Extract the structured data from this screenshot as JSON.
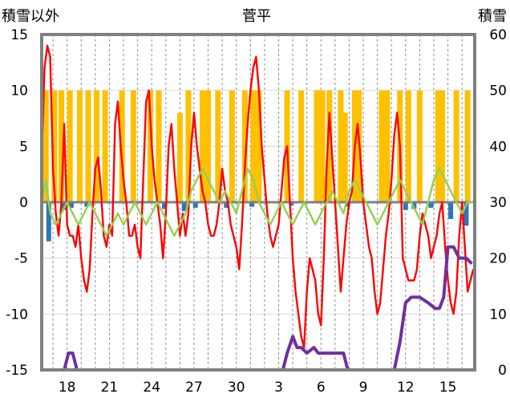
{
  "chart_data": {
    "type": "bar+line",
    "title": "菅平",
    "left_axis_label": "積雪以外",
    "right_axis_label": "積雪",
    "left_ylim": [
      -15,
      15
    ],
    "left_ticks": [
      -15,
      -10,
      -5,
      0,
      5,
      10,
      15
    ],
    "right_ylim": [
      0,
      60
    ],
    "right_ticks": [
      0,
      10,
      20,
      30,
      40,
      50,
      60
    ],
    "x_tick_labels": [
      "18",
      "21",
      "24",
      "27",
      "30",
      "3",
      "6",
      "9",
      "12",
      "15"
    ],
    "x_tick_days": [
      2,
      5,
      8,
      11,
      14,
      17,
      20,
      23,
      26,
      29
    ],
    "x_range_days": [
      0.2,
      30.9
    ],
    "grid_vertical_dashed": true,
    "colors": {
      "yellow_bars": "#FFC000",
      "blue_bars": "#2E75B6",
      "red_line": "#FF0000",
      "green_line": "#92D050",
      "purple_line": "#7030A0",
      "frame": "#808080"
    },
    "series": [
      {
        "kind": "bar",
        "axis": "left",
        "color": "#FFC000",
        "points": [
          [
            0.5,
            10
          ],
          [
            1.1,
            10
          ],
          [
            1.6,
            10
          ],
          [
            2.2,
            10
          ],
          [
            2.9,
            10
          ],
          [
            3.5,
            10
          ],
          [
            4.1,
            10
          ],
          [
            4.7,
            10
          ],
          [
            5.9,
            10
          ],
          [
            6.7,
            10
          ],
          [
            7.9,
            10
          ],
          [
            8.5,
            10
          ],
          [
            10.0,
            8
          ],
          [
            10.6,
            10
          ],
          [
            11.6,
            10
          ],
          [
            12.0,
            10
          ],
          [
            12.7,
            10
          ],
          [
            13.7,
            10
          ],
          [
            14.6,
            10
          ],
          [
            15.2,
            10
          ],
          [
            15.6,
            10
          ],
          [
            17.6,
            10
          ],
          [
            18.6,
            10
          ],
          [
            19.7,
            10
          ],
          [
            20.1,
            10
          ],
          [
            20.6,
            10
          ],
          [
            21.4,
            10
          ],
          [
            21.7,
            8
          ],
          [
            22.4,
            10
          ],
          [
            22.7,
            10
          ],
          [
            24.3,
            10
          ],
          [
            24.7,
            10
          ],
          [
            25.6,
            10
          ],
          [
            26.2,
            10
          ],
          [
            27.0,
            10
          ],
          [
            28.3,
            10
          ],
          [
            28.6,
            10
          ],
          [
            29.6,
            10
          ],
          [
            30.4,
            10
          ]
        ]
      },
      {
        "kind": "bar",
        "axis": "left",
        "color": "#2E75B6",
        "points": [
          [
            0.7,
            -3.5
          ],
          [
            1.8,
            -0.7
          ],
          [
            2.3,
            -0.5
          ],
          [
            3.4,
            -0.4
          ],
          [
            8.9,
            -0.6
          ],
          [
            10.3,
            -0.8
          ],
          [
            11.1,
            -0.5
          ],
          [
            13.3,
            -0.5
          ],
          [
            15.1,
            -0.4
          ],
          [
            17.9,
            -0.3
          ],
          [
            21.9,
            -0.4
          ],
          [
            26.0,
            -0.7
          ],
          [
            26.6,
            -0.6
          ],
          [
            27.8,
            -0.5
          ],
          [
            29.2,
            -1.5
          ],
          [
            30.3,
            -2.1
          ]
        ]
      },
      {
        "kind": "line",
        "axis": "left",
        "color": "#FF0000",
        "name": "",
        "points": [
          [
            0.2,
            4
          ],
          [
            0.4,
            12
          ],
          [
            0.6,
            14
          ],
          [
            0.8,
            13
          ],
          [
            1.0,
            3
          ],
          [
            1.2,
            -1
          ],
          [
            1.4,
            -3
          ],
          [
            1.6,
            0
          ],
          [
            1.8,
            7
          ],
          [
            2.0,
            -2
          ],
          [
            2.2,
            -3
          ],
          [
            2.4,
            -3
          ],
          [
            2.6,
            -4
          ],
          [
            2.8,
            -2
          ],
          [
            3.0,
            -5
          ],
          [
            3.2,
            -7
          ],
          [
            3.4,
            -8
          ],
          [
            3.6,
            -6
          ],
          [
            3.8,
            -1
          ],
          [
            4.0,
            3
          ],
          [
            4.2,
            4
          ],
          [
            4.4,
            1
          ],
          [
            4.6,
            -3
          ],
          [
            4.8,
            -4
          ],
          [
            5.0,
            -2
          ],
          [
            5.2,
            -3
          ],
          [
            5.4,
            7
          ],
          [
            5.6,
            9
          ],
          [
            5.8,
            5
          ],
          [
            6.0,
            2
          ],
          [
            6.2,
            0
          ],
          [
            6.4,
            -3
          ],
          [
            6.6,
            -3
          ],
          [
            6.8,
            -2
          ],
          [
            7.0,
            -4
          ],
          [
            7.2,
            -5
          ],
          [
            7.4,
            2
          ],
          [
            7.6,
            9
          ],
          [
            7.8,
            10
          ],
          [
            8.0,
            5
          ],
          [
            8.2,
            2
          ],
          [
            8.4,
            0
          ],
          [
            8.6,
            -2
          ],
          [
            8.8,
            -5
          ],
          [
            9.0,
            -1
          ],
          [
            9.2,
            5
          ],
          [
            9.4,
            7
          ],
          [
            9.6,
            3
          ],
          [
            9.8,
            0
          ],
          [
            10.0,
            -3
          ],
          [
            10.2,
            -1
          ],
          [
            10.4,
            -3
          ],
          [
            10.6,
            -1
          ],
          [
            10.8,
            5
          ],
          [
            11.0,
            8
          ],
          [
            11.2,
            5
          ],
          [
            11.4,
            3
          ],
          [
            11.6,
            1
          ],
          [
            11.8,
            0
          ],
          [
            12.0,
            -2
          ],
          [
            12.2,
            -3
          ],
          [
            12.4,
            -3
          ],
          [
            12.6,
            -2
          ],
          [
            12.8,
            0
          ],
          [
            13.0,
            3
          ],
          [
            13.2,
            1
          ],
          [
            13.4,
            0
          ],
          [
            13.6,
            -2
          ],
          [
            13.8,
            -3
          ],
          [
            14.0,
            -4
          ],
          [
            14.2,
            -6
          ],
          [
            14.4,
            -2
          ],
          [
            14.6,
            3
          ],
          [
            14.8,
            7
          ],
          [
            15.0,
            10
          ],
          [
            15.2,
            12
          ],
          [
            15.4,
            13
          ],
          [
            15.6,
            10
          ],
          [
            15.8,
            5
          ],
          [
            16.0,
            2
          ],
          [
            16.2,
            -1
          ],
          [
            16.4,
            -3
          ],
          [
            16.6,
            -4
          ],
          [
            16.8,
            -3
          ],
          [
            17.0,
            -2
          ],
          [
            17.2,
            1
          ],
          [
            17.4,
            4
          ],
          [
            17.6,
            5
          ],
          [
            17.8,
            0
          ],
          [
            18.0,
            -5
          ],
          [
            18.2,
            -8
          ],
          [
            18.4,
            -10
          ],
          [
            18.6,
            -12
          ],
          [
            18.8,
            -13
          ],
          [
            19.0,
            -8
          ],
          [
            19.2,
            -5
          ],
          [
            19.4,
            -6
          ],
          [
            19.6,
            -7
          ],
          [
            19.8,
            -10
          ],
          [
            20.0,
            -11
          ],
          [
            20.2,
            -5
          ],
          [
            20.4,
            3
          ],
          [
            20.6,
            8
          ],
          [
            20.8,
            4
          ],
          [
            21.0,
            0
          ],
          [
            21.2,
            -4
          ],
          [
            21.4,
            -8
          ],
          [
            21.6,
            -5
          ],
          [
            21.8,
            -2
          ],
          [
            22.0,
            0
          ],
          [
            22.2,
            1
          ],
          [
            22.4,
            5
          ],
          [
            22.6,
            7
          ],
          [
            22.8,
            4
          ],
          [
            23.0,
            0
          ],
          [
            23.2,
            -2
          ],
          [
            23.4,
            -4
          ],
          [
            23.6,
            -5
          ],
          [
            23.8,
            -8
          ],
          [
            24.0,
            -10
          ],
          [
            24.2,
            -9
          ],
          [
            24.4,
            -6
          ],
          [
            24.6,
            -3
          ],
          [
            24.8,
            -1
          ],
          [
            25.0,
            2
          ],
          [
            25.2,
            6
          ],
          [
            25.4,
            8
          ],
          [
            25.6,
            5
          ],
          [
            25.8,
            -5
          ],
          [
            26.0,
            -6
          ],
          [
            26.2,
            -7
          ],
          [
            26.4,
            -7
          ],
          [
            26.6,
            -7
          ],
          [
            26.8,
            -6
          ],
          [
            27.0,
            -3
          ],
          [
            27.2,
            -1
          ],
          [
            27.4,
            -2
          ],
          [
            27.6,
            -3
          ],
          [
            27.8,
            -5
          ],
          [
            28.0,
            -4
          ],
          [
            28.2,
            -3
          ],
          [
            28.4,
            -1
          ],
          [
            28.6,
            0
          ],
          [
            28.8,
            -4
          ],
          [
            29.0,
            -7
          ],
          [
            29.2,
            -9
          ],
          [
            29.4,
            -10
          ],
          [
            29.6,
            -8
          ],
          [
            29.8,
            -3
          ],
          [
            30.0,
            0
          ],
          [
            30.2,
            -4
          ],
          [
            30.4,
            -8
          ],
          [
            30.6,
            -7
          ],
          [
            30.8,
            -6
          ]
        ]
      },
      {
        "kind": "line",
        "axis": "left",
        "color": "#92D050",
        "name": "",
        "points": [
          [
            0.2,
            0
          ],
          [
            0.5,
            2
          ],
          [
            0.8,
            -1
          ],
          [
            1.2,
            -2
          ],
          [
            1.6,
            -1
          ],
          [
            2.0,
            0
          ],
          [
            2.4,
            -1
          ],
          [
            2.8,
            -2
          ],
          [
            3.2,
            -1
          ],
          [
            3.6,
            0
          ],
          [
            4.0,
            -1
          ],
          [
            4.4,
            -2
          ],
          [
            4.8,
            -3
          ],
          [
            5.2,
            -2
          ],
          [
            5.6,
            -1
          ],
          [
            6.0,
            -2
          ],
          [
            6.4,
            -1
          ],
          [
            6.8,
            0
          ],
          [
            7.2,
            -1
          ],
          [
            7.6,
            -2
          ],
          [
            8.0,
            -1
          ],
          [
            8.4,
            0
          ],
          [
            8.8,
            -1
          ],
          [
            9.2,
            -2
          ],
          [
            9.6,
            -3
          ],
          [
            10.0,
            -2
          ],
          [
            10.4,
            -1
          ],
          [
            10.8,
            1
          ],
          [
            11.2,
            2
          ],
          [
            11.6,
            3
          ],
          [
            12.0,
            2
          ],
          [
            12.4,
            1
          ],
          [
            12.8,
            0
          ],
          [
            13.2,
            1
          ],
          [
            13.6,
            0
          ],
          [
            14.0,
            -1
          ],
          [
            14.4,
            1
          ],
          [
            14.8,
            3
          ],
          [
            15.2,
            2
          ],
          [
            15.6,
            0
          ],
          [
            16.0,
            -1
          ],
          [
            16.4,
            -2
          ],
          [
            16.8,
            -1
          ],
          [
            17.2,
            0
          ],
          [
            17.6,
            -1
          ],
          [
            18.0,
            -2
          ],
          [
            18.4,
            -1
          ],
          [
            18.8,
            0
          ],
          [
            19.2,
            -1
          ],
          [
            19.6,
            -2
          ],
          [
            20.0,
            -1
          ],
          [
            20.4,
            0
          ],
          [
            20.8,
            1
          ],
          [
            21.2,
            0
          ],
          [
            21.6,
            -1
          ],
          [
            22.0,
            1
          ],
          [
            22.4,
            2
          ],
          [
            22.8,
            1
          ],
          [
            23.2,
            0
          ],
          [
            23.6,
            -1
          ],
          [
            24.0,
            -2
          ],
          [
            24.4,
            -1
          ],
          [
            24.8,
            0
          ],
          [
            25.2,
            1
          ],
          [
            25.6,
            2
          ],
          [
            26.0,
            1
          ],
          [
            26.4,
            0
          ],
          [
            26.8,
            -1
          ],
          [
            27.2,
            -2
          ],
          [
            27.6,
            0
          ],
          [
            28.0,
            2
          ],
          [
            28.4,
            3
          ],
          [
            28.8,
            2
          ],
          [
            29.2,
            1
          ],
          [
            29.6,
            0
          ],
          [
            30.0,
            -1
          ],
          [
            30.4,
            0
          ],
          [
            30.8,
            0
          ]
        ]
      },
      {
        "kind": "line",
        "axis": "right",
        "color": "#7030A0",
        "name": "",
        "points": [
          [
            0.2,
            0
          ],
          [
            1.8,
            0
          ],
          [
            2.1,
            3
          ],
          [
            2.4,
            3
          ],
          [
            2.7,
            0
          ],
          [
            17.3,
            0
          ],
          [
            17.6,
            3
          ],
          [
            18.0,
            6
          ],
          [
            18.3,
            4
          ],
          [
            18.6,
            4
          ],
          [
            19.0,
            3
          ],
          [
            19.5,
            4
          ],
          [
            19.8,
            3
          ],
          [
            20.2,
            3
          ],
          [
            21.0,
            3
          ],
          [
            21.6,
            3
          ],
          [
            21.9,
            0
          ],
          [
            25.2,
            0
          ],
          [
            25.6,
            5
          ],
          [
            26.0,
            12
          ],
          [
            26.4,
            13
          ],
          [
            27.0,
            13
          ],
          [
            27.6,
            12
          ],
          [
            28.1,
            11
          ],
          [
            28.4,
            11
          ],
          [
            28.7,
            13
          ],
          [
            29.0,
            22
          ],
          [
            29.4,
            22
          ],
          [
            29.8,
            20
          ],
          [
            30.3,
            20
          ],
          [
            30.7,
            19
          ]
        ]
      }
    ]
  }
}
